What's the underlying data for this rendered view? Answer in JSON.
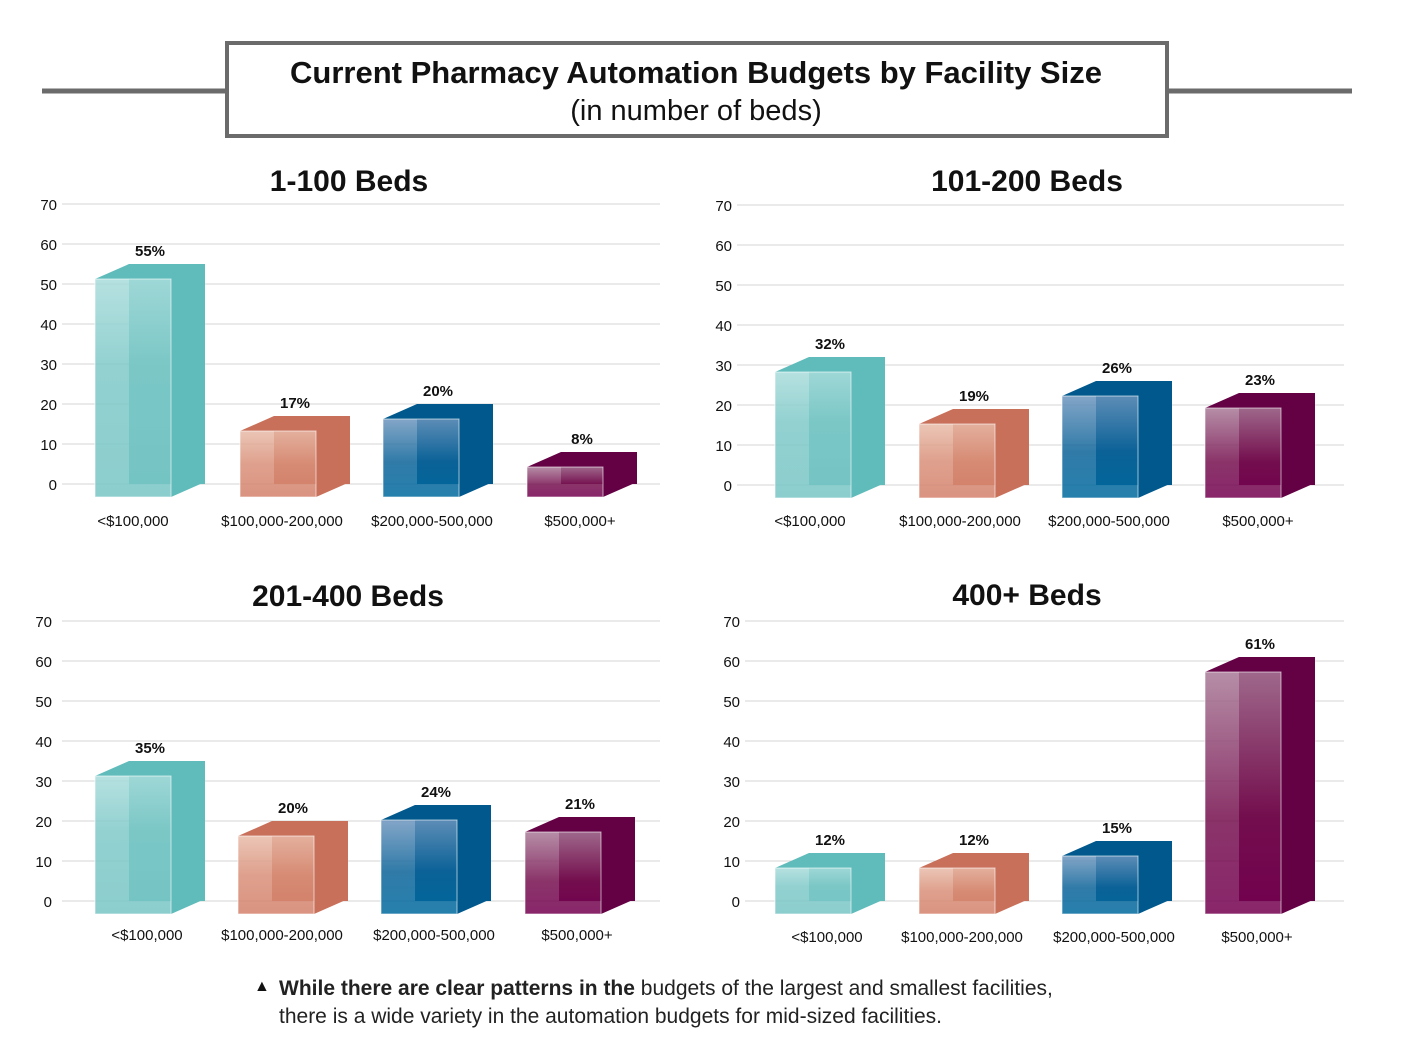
{
  "title": "Current Pharmacy Automation Budgets by Facility Size",
  "subtitle": "(in number of beds)",
  "footnote": {
    "marker": "▲",
    "bold": "While there are clear patterns in the",
    "rest_line1": " budgets of the largest and smallest facilities,",
    "line2": "there is a wide variety in the automation budgets for mid-sized facilities."
  },
  "colors": {
    "<$100,000": "#5fbcbb",
    "$100,000-200,000": "#c9705a",
    "$200,000-500,000": "#00588c",
    "$500,000+": "#640044"
  },
  "chart_data": [
    {
      "type": "bar",
      "title": "1-100 Beds",
      "categories": [
        "<$100,000",
        "$100,000-200,000",
        "$200,000-500,000",
        "$500,000+"
      ],
      "values": [
        55,
        17,
        20,
        8
      ],
      "labels": [
        "55%",
        "17%",
        "20%",
        "8%"
      ],
      "ylim": [
        0,
        70
      ],
      "yticks": [
        0,
        10,
        20,
        30,
        40,
        50,
        60,
        70
      ],
      "grid": true
    },
    {
      "type": "bar",
      "title": "101-200 Beds",
      "categories": [
        "<$100,000",
        "$100,000-200,000",
        "$200,000-500,000",
        "$500,000+"
      ],
      "values": [
        32,
        19,
        26,
        23
      ],
      "labels": [
        "32%",
        "19%",
        "26%",
        "23%"
      ],
      "ylim": [
        0,
        70
      ],
      "yticks": [
        0,
        10,
        20,
        30,
        40,
        50,
        60,
        70
      ],
      "grid": true
    },
    {
      "type": "bar",
      "title": "201-400 Beds",
      "categories": [
        "<$100,000",
        "$100,000-200,000",
        "$200,000-500,000",
        "$500,000+"
      ],
      "values": [
        35,
        20,
        24,
        21
      ],
      "labels": [
        "35%",
        "20%",
        "24%",
        "21%"
      ],
      "ylim": [
        0,
        70
      ],
      "yticks": [
        0,
        10,
        20,
        30,
        40,
        50,
        60,
        70
      ],
      "grid": true
    },
    {
      "type": "bar",
      "title": "400+ Beds",
      "categories": [
        "<$100,000",
        "$100,000-200,000",
        "$200,000-500,000",
        "$500,000+"
      ],
      "values": [
        12,
        12,
        15,
        61
      ],
      "labels": [
        "12%",
        "12%",
        "15%",
        "61%"
      ],
      "ylim": [
        0,
        70
      ],
      "yticks": [
        0,
        10,
        20,
        30,
        40,
        50,
        60,
        70
      ],
      "grid": true
    }
  ]
}
